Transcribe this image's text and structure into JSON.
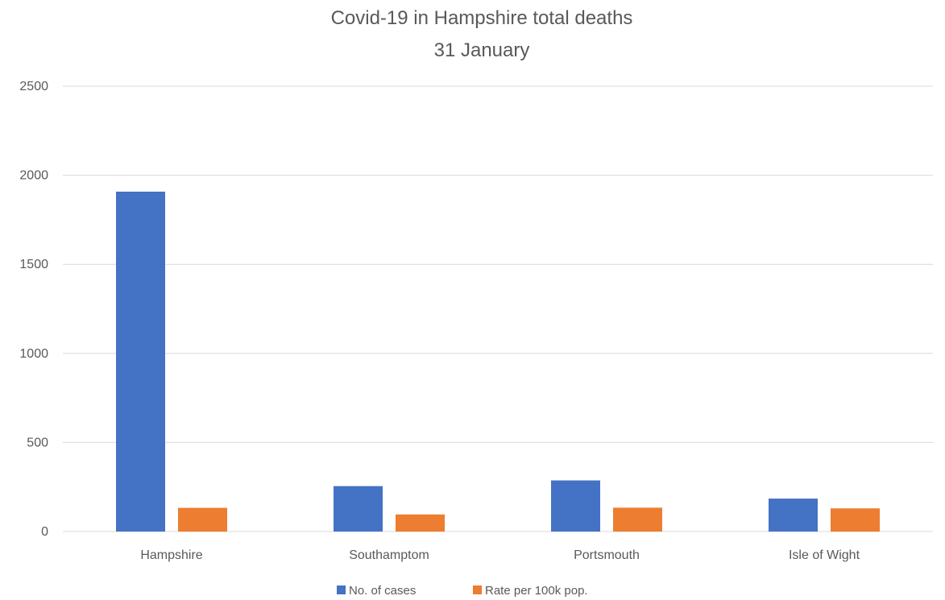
{
  "chart_data": {
    "type": "bar",
    "title": "Covid-19 in Hampshire total deaths",
    "subtitle": "31 January",
    "categories": [
      "Hampshire",
      "Southamptom",
      "Portsmouth",
      "Isle of Wight"
    ],
    "series": [
      {
        "name": "No. of cases",
        "values": [
          1908,
          255,
          287,
          185
        ],
        "color": "#4472c4"
      },
      {
        "name": "Rate per 100k pop.",
        "values": [
          133,
          96,
          134,
          130
        ],
        "color": "#ed7d31"
      }
    ],
    "ylim": [
      0,
      2500
    ],
    "yticks": [
      "0",
      "500",
      "1000",
      "1500",
      "2000",
      "2500"
    ],
    "grid": true,
    "legend_position": "bottom"
  }
}
